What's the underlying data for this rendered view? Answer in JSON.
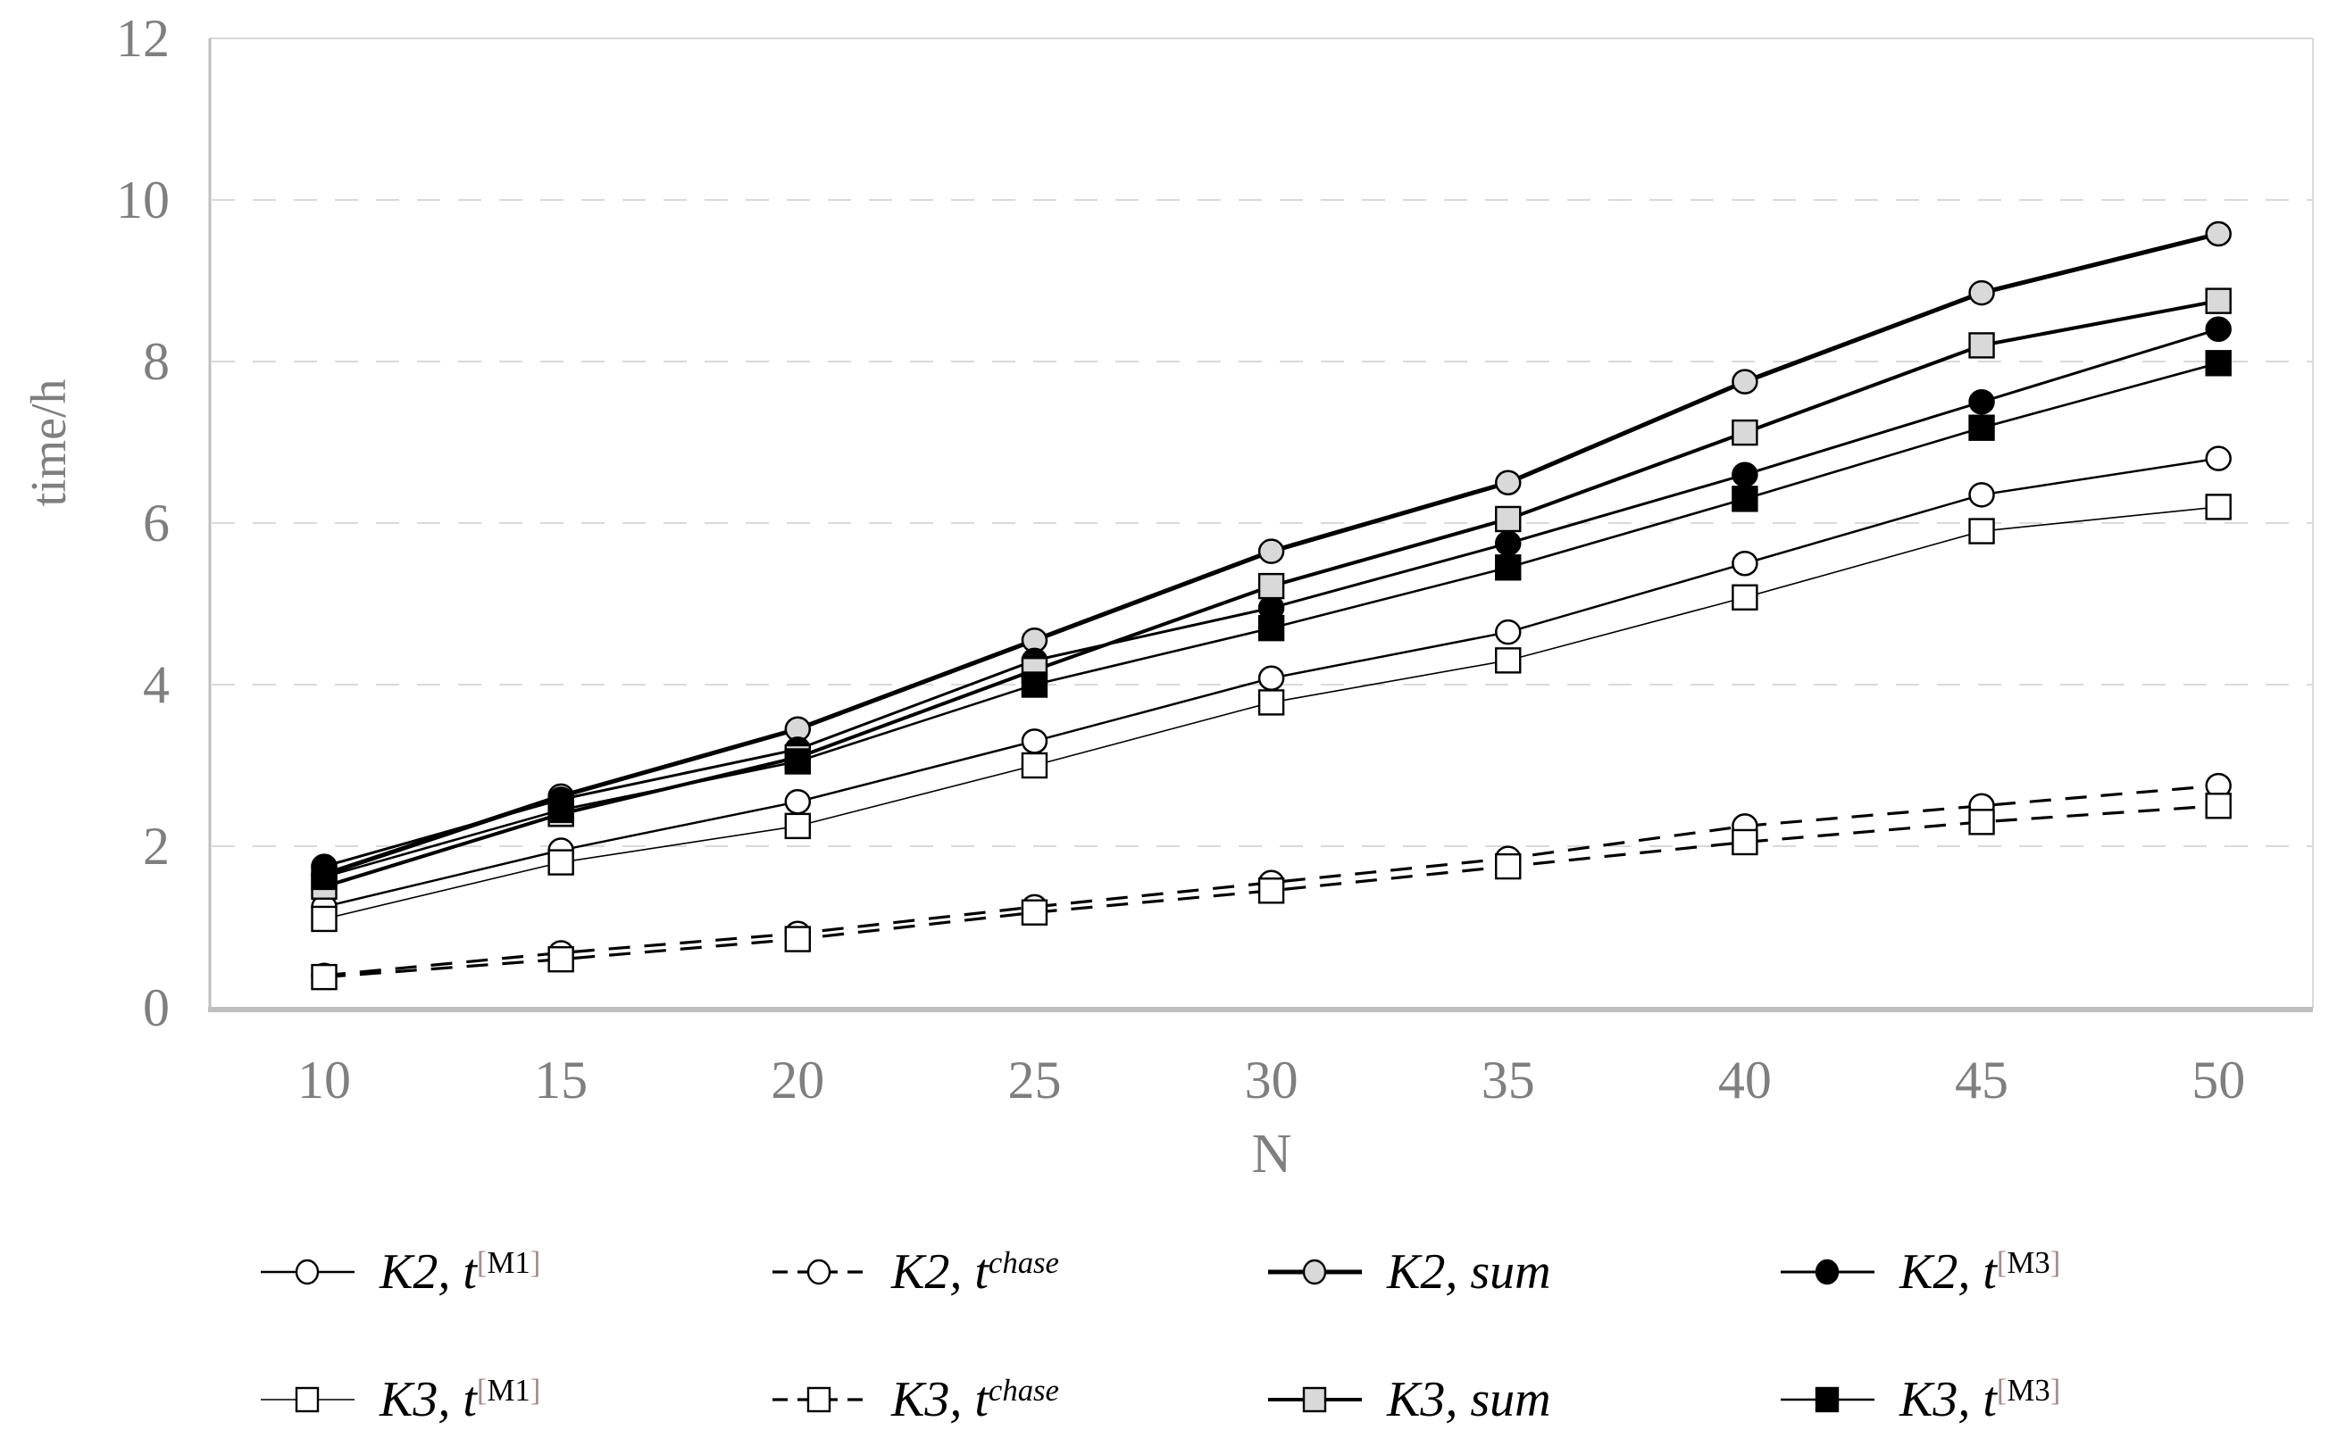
{
  "chart_data": {
    "type": "line",
    "title": "",
    "xlabel": "N",
    "ylabel": "time/h",
    "x": [
      10,
      15,
      20,
      25,
      30,
      35,
      40,
      45,
      50
    ],
    "xticks": [
      10,
      15,
      20,
      25,
      30,
      35,
      40,
      45,
      50
    ],
    "yticks": [
      0,
      2,
      4,
      6,
      8,
      10,
      12
    ],
    "ylim": [
      0,
      12
    ],
    "grid": {
      "style": "horizontal-dashed",
      "at": [
        2,
        4,
        6,
        8,
        10
      ]
    },
    "legend_position": "bottom",
    "series": [
      {
        "id": "k2-m1",
        "name": "K2, t[M1]",
        "marker": "circle",
        "fill": "white",
        "dash": "solid",
        "stroke_width": 2.5,
        "values": [
          1.25,
          1.95,
          2.55,
          3.3,
          4.08,
          4.65,
          5.5,
          6.35,
          6.8
        ]
      },
      {
        "id": "k3-m1",
        "name": "K3, t[M1]",
        "marker": "square",
        "fill": "white",
        "dash": "solid",
        "stroke_width": 1.6,
        "values": [
          1.1,
          1.8,
          2.25,
          3.0,
          3.78,
          4.3,
          5.08,
          5.9,
          6.2
        ]
      },
      {
        "id": "k2-chase",
        "name": "K2, t chase",
        "marker": "circle",
        "fill": "white",
        "dash": "dashed",
        "stroke_width": 3.2,
        "values": [
          0.4,
          0.68,
          0.92,
          1.25,
          1.55,
          1.85,
          2.25,
          2.5,
          2.75
        ]
      },
      {
        "id": "k3-chase",
        "name": "K3, t chase",
        "marker": "square",
        "fill": "white",
        "dash": "dashed",
        "stroke_width": 3.2,
        "values": [
          0.38,
          0.6,
          0.85,
          1.18,
          1.45,
          1.75,
          2.05,
          2.3,
          2.5
        ]
      },
      {
        "id": "k2-sum",
        "name": "K2, sum",
        "marker": "circle",
        "fill": "gray",
        "dash": "solid",
        "stroke_width": 5.0,
        "values": [
          1.65,
          2.62,
          3.45,
          4.55,
          5.65,
          6.5,
          7.75,
          8.85,
          9.58
        ]
      },
      {
        "id": "k2-m3",
        "name": "K2, t[M3]",
        "marker": "circle",
        "fill": "black",
        "dash": "solid",
        "stroke_width": 3.0,
        "values": [
          1.75,
          2.58,
          3.2,
          4.3,
          4.95,
          5.75,
          6.6,
          7.5,
          8.4
        ]
      },
      {
        "id": "k3-sum",
        "name": "K3, sum",
        "marker": "square",
        "fill": "gray",
        "dash": "solid",
        "stroke_width": 4.0,
        "values": [
          1.5,
          2.4,
          3.1,
          4.18,
          5.22,
          6.05,
          7.12,
          8.2,
          8.75
        ]
      },
      {
        "id": "k3-m3",
        "name": "K3, t[M3]",
        "marker": "square",
        "fill": "black",
        "dash": "solid",
        "stroke_width": 2.6,
        "values": [
          1.62,
          2.45,
          3.05,
          4.0,
          4.7,
          5.45,
          6.3,
          7.18,
          7.98
        ]
      }
    ]
  },
  "legend": {
    "rows": [
      [
        {
          "series": "k2-m1",
          "base": "K2, t",
          "sup_open": "[",
          "sup": "M1",
          "sup_close": "]",
          "sup_style": "roman"
        },
        {
          "series": "k2-chase",
          "base": "K2, t",
          "sup": "chase",
          "sup_style": "italic"
        },
        {
          "series": "k2-sum",
          "base": "K2, sum"
        },
        {
          "series": "k2-m3",
          "base": "K2, t",
          "sup_open": "[",
          "sup": "M3",
          "sup_close": "]",
          "sup_style": "roman"
        }
      ],
      [
        {
          "series": "k3-m1",
          "base": "K3, t",
          "sup_open": "[",
          "sup": "M1",
          "sup_close": "]",
          "sup_style": "roman"
        },
        {
          "series": "k3-chase",
          "base": "K3, t",
          "sup": "chase",
          "sup_style": "italic"
        },
        {
          "series": "k3-sum",
          "base": "K3, sum"
        },
        {
          "series": "k3-m3",
          "base": "K3, t",
          "sup_open": "[",
          "sup": "M3",
          "sup_close": "]",
          "sup_style": "roman"
        }
      ]
    ]
  },
  "colors": {
    "background": "#ffffff",
    "line": "#000000",
    "gray_fill": "#d9d9d9",
    "white_fill": "#ffffff",
    "black_fill": "#000000",
    "grid": "#d9d9d9",
    "axis_line_light": "#d9d9d9",
    "axis_line": "#bfbfbf",
    "axis_text": "#7f7f7f",
    "bracket": "#a68c8c"
  }
}
